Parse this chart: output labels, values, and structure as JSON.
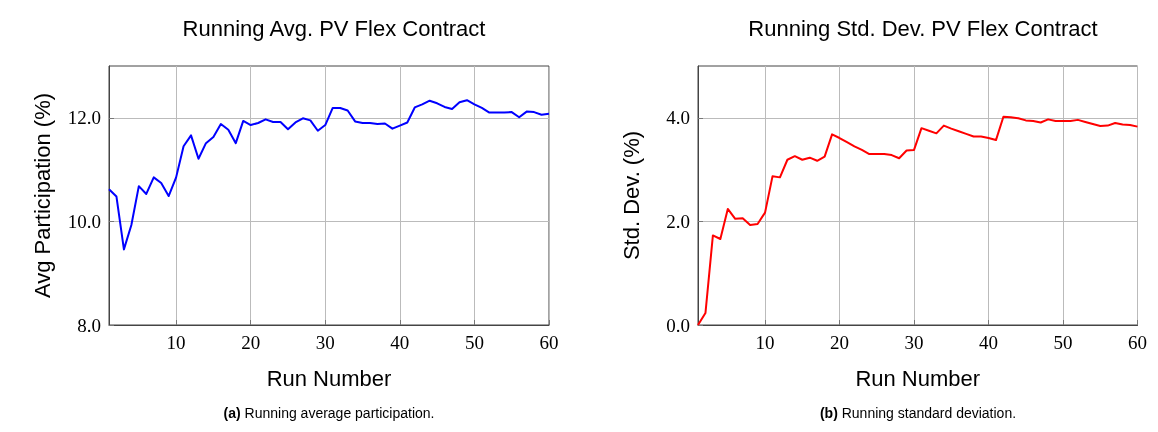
{
  "chart_data": [
    {
      "type": "line",
      "title": "Running Avg. PV Flex Contract",
      "xlabel": "Run Number",
      "ylabel": "Avg Participation (%)",
      "annotations": [
        "(a) Running average participation."
      ],
      "x": [
        1,
        2,
        3,
        4,
        5,
        6,
        7,
        8,
        9,
        10,
        11,
        12,
        13,
        14,
        15,
        16,
        17,
        18,
        19,
        20,
        21,
        22,
        23,
        24,
        25,
        26,
        27,
        28,
        29,
        30,
        31,
        32,
        33,
        34,
        35,
        36,
        37,
        38,
        39,
        40,
        41,
        42,
        43,
        44,
        45,
        46,
        47,
        48,
        49,
        50,
        51,
        52,
        53,
        54,
        55,
        56,
        57,
        58,
        59,
        60
      ],
      "series": [
        {
          "color": "#0000ff",
          "values": [
            10.62,
            10.48,
            9.46,
            9.93,
            10.68,
            10.53,
            10.85,
            10.74,
            10.49,
            10.85,
            11.45,
            11.66,
            11.21,
            11.51,
            11.63,
            11.88,
            11.77,
            11.51,
            11.94,
            11.86,
            11.9,
            11.97,
            11.92,
            11.92,
            11.78,
            11.91,
            11.99,
            11.95,
            11.75,
            11.86,
            12.19,
            12.19,
            12.14,
            11.93,
            11.9,
            11.9,
            11.88,
            11.89,
            11.79,
            11.85,
            11.91,
            12.2,
            12.26,
            12.33,
            12.28,
            12.21,
            12.17,
            12.3,
            12.34,
            12.26,
            12.19,
            12.1,
            12.1,
            12.1,
            12.11,
            12.01,
            12.12,
            12.11,
            12.06,
            12.08
          ]
        }
      ],
      "xlim": [
        1,
        60
      ],
      "xticks": [
        10,
        20,
        30,
        40,
        50,
        60
      ],
      "ylim": [
        8,
        13
      ],
      "yticks": [
        {
          "value": 8,
          "label": "8.0"
        },
        {
          "value": 10,
          "label": "10.0"
        },
        {
          "value": 12,
          "label": "12.0"
        }
      ],
      "grid": true,
      "marker": "none",
      "line_style": "solid"
    },
    {
      "type": "line",
      "title": "Running Std. Dev. PV Flex Contract",
      "xlabel": "Run Number",
      "ylabel": "Std. Dev. (%)",
      "annotations": [
        "(b) Running standard deviation."
      ],
      "x": [
        1,
        2,
        3,
        4,
        5,
        6,
        7,
        8,
        9,
        10,
        11,
        12,
        13,
        14,
        15,
        16,
        17,
        18,
        19,
        20,
        21,
        22,
        23,
        24,
        25,
        26,
        27,
        28,
        29,
        30,
        31,
        32,
        33,
        34,
        35,
        36,
        37,
        38,
        39,
        40,
        41,
        42,
        43,
        44,
        45,
        46,
        47,
        48,
        49,
        50,
        51,
        52,
        53,
        54,
        55,
        56,
        57,
        58,
        59,
        60
      ],
      "series": [
        {
          "color": "#ff0000",
          "values": [
            0,
            0.23,
            1.73,
            1.66,
            2.24,
            2.05,
            2.06,
            1.93,
            1.95,
            2.17,
            2.87,
            2.85,
            3.19,
            3.26,
            3.19,
            3.23,
            3.17,
            3.25,
            3.68,
            3.61,
            3.53,
            3.45,
            3.38,
            3.3,
            3.3,
            3.3,
            3.28,
            3.22,
            3.37,
            3.38,
            3.8,
            3.75,
            3.7,
            3.85,
            3.79,
            3.74,
            3.69,
            3.64,
            3.64,
            3.61,
            3.57,
            4.02,
            4.01,
            3.99,
            3.95,
            3.94,
            3.91,
            3.97,
            3.94,
            3.94,
            3.94,
            3.96,
            3.92,
            3.88,
            3.84,
            3.85,
            3.9,
            3.87,
            3.86,
            3.83
          ]
        }
      ],
      "xlim": [
        1,
        60
      ],
      "xticks": [
        10,
        20,
        30,
        40,
        50,
        60
      ],
      "ylim": [
        0,
        5
      ],
      "yticks": [
        {
          "value": 0,
          "label": "0.0"
        },
        {
          "value": 2,
          "label": "2.0"
        },
        {
          "value": 4,
          "label": "4.0"
        }
      ],
      "grid": true,
      "marker": "none",
      "line_style": "solid"
    }
  ]
}
